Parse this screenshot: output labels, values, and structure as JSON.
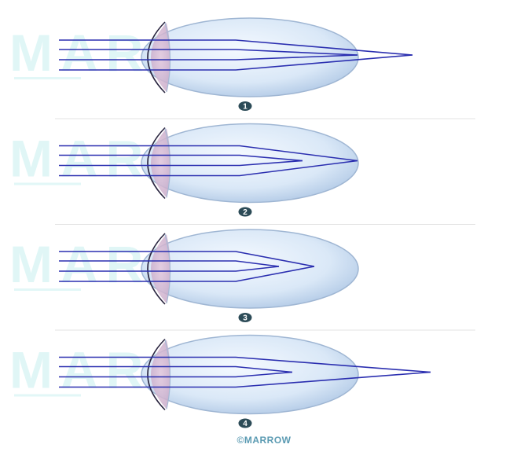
{
  "watermark": "MARROW",
  "panels": [
    {
      "label": "1",
      "focus": "behind-retina"
    },
    {
      "label": "2",
      "focus": "on-retina"
    },
    {
      "label": "3",
      "focus": "in-front-of-retina"
    },
    {
      "label": "4",
      "focus": "two-foci"
    }
  ],
  "credit": "©MARROW",
  "colors": {
    "ray": "#2b2fb0",
    "eye_fill": "#dbe9f8",
    "eye_edge": "#9fb6d3",
    "badge": "#2c4b57",
    "divider": "#e3e3e3",
    "watermark": "#d6f4f4",
    "credit": "#5a9ab2"
  }
}
